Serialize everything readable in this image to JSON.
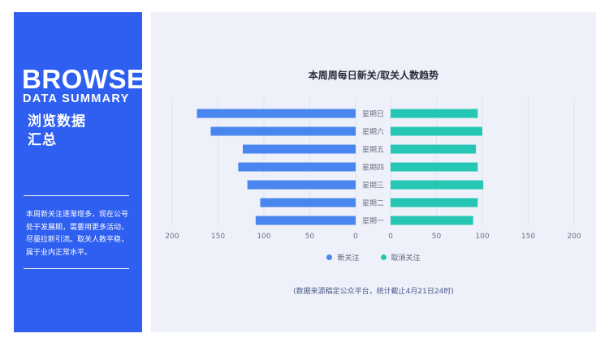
{
  "sidebar": {
    "title": "BROWSE",
    "subtitle": "DATA SUMMARY",
    "cn_title_line1": "浏览数据",
    "cn_title_line2": "汇总",
    "summary": "本周新关注逐渐增多，现在公号处于发展期，需要用更多活动，尽量拉新引流。取关人数平稳，属于业内正常水平。"
  },
  "footnote": "(数据来源稿定公众平台，统计截止4月21日24时)",
  "colors": {
    "sidebar": "#2f5ff0",
    "new_follow": "#4a86f0",
    "unfollow": "#26c6b4"
  },
  "chart_data": {
    "type": "bar",
    "orientation": "horizontal-butterfly",
    "title": "本周周每日新关/取关人数趋势",
    "categories": [
      "星期日",
      "星期六",
      "星期五",
      "星期四",
      "星期三",
      "星期二",
      "星期一"
    ],
    "series": [
      {
        "name": "新关注",
        "values": [
          173,
          158,
          123,
          128,
          118,
          104,
          109
        ]
      },
      {
        "name": "取消关注",
        "values": [
          95,
          100,
          93,
          95,
          101,
          95,
          90
        ]
      }
    ],
    "left_axis_ticks": [
      "200",
      "150",
      "100",
      "50",
      "0"
    ],
    "right_axis_ticks": [
      "0",
      "50",
      "100",
      "150",
      "200"
    ],
    "xlim": [
      0,
      200
    ],
    "legend_position": "bottom"
  }
}
